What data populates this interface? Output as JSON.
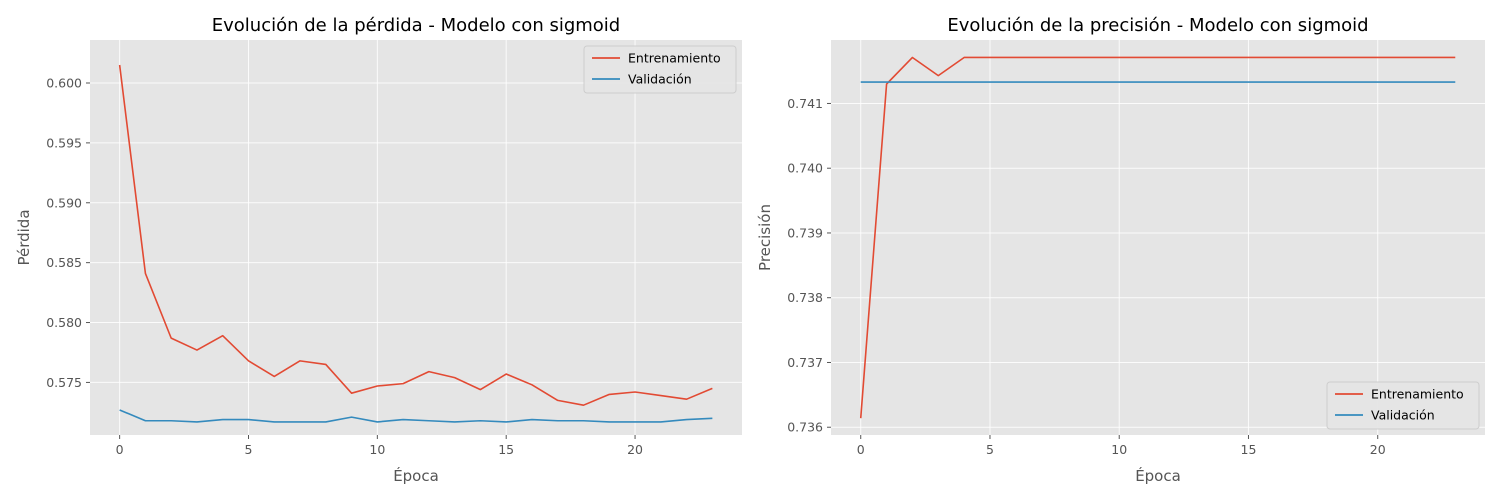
{
  "chart_data": [
    {
      "type": "line",
      "title": "Evolución de la pérdida - Modelo con sigmoid",
      "xlabel": "Época",
      "ylabel": "Pérdida",
      "xlim": [
        -1.15,
        24.15
      ],
      "ylim": [
        0.57061,
        0.60359
      ],
      "xticks": [
        0,
        5,
        10,
        15,
        20
      ],
      "yticks": [
        0.575,
        0.58,
        0.585,
        0.59,
        0.595,
        0.6
      ],
      "ytick_labels": [
        "0.575",
        "0.580",
        "0.585",
        "0.590",
        "0.595",
        "0.600"
      ],
      "grid": true,
      "legend": "upper right",
      "x": [
        0,
        1,
        2,
        3,
        4,
        5,
        6,
        7,
        8,
        9,
        10,
        11,
        12,
        13,
        14,
        15,
        16,
        17,
        18,
        19,
        20,
        21,
        22,
        23
      ],
      "series": [
        {
          "name": "Entrenamiento",
          "color": "#e24a33",
          "values": [
            0.6015,
            0.5841,
            0.5787,
            0.5777,
            0.5789,
            0.5768,
            0.5755,
            0.5768,
            0.5765,
            0.5741,
            0.5747,
            0.5749,
            0.5759,
            0.5754,
            0.5744,
            0.5757,
            0.5748,
            0.5735,
            0.5731,
            0.574,
            0.5742,
            0.5739,
            0.5736,
            0.5745
          ]
        },
        {
          "name": "Validación",
          "color": "#348abd",
          "values": [
            0.5727,
            0.5718,
            0.5718,
            0.5717,
            0.5719,
            0.5719,
            0.5717,
            0.5717,
            0.5717,
            0.5721,
            0.5717,
            0.5719,
            0.5718,
            0.5717,
            0.5718,
            0.5717,
            0.5719,
            0.5718,
            0.5718,
            0.5717,
            0.5717,
            0.5717,
            0.5719,
            0.572
          ]
        }
      ]
    },
    {
      "type": "line",
      "title": "Evolución de la precisión - Modelo con sigmoid",
      "xlabel": "Época",
      "ylabel": "Precisión",
      "xlim": [
        -1.15,
        24.15
      ],
      "ylim": [
        0.73588,
        0.74198
      ],
      "xticks": [
        0,
        5,
        10,
        15,
        20
      ],
      "yticks": [
        0.736,
        0.737,
        0.738,
        0.739,
        0.74,
        0.741
      ],
      "ytick_labels": [
        "0.736",
        "0.737",
        "0.738",
        "0.739",
        "0.740",
        "0.741"
      ],
      "grid": true,
      "legend": "lower right",
      "x": [
        0,
        1,
        2,
        3,
        4,
        5,
        6,
        7,
        8,
        9,
        10,
        11,
        12,
        13,
        14,
        15,
        16,
        17,
        18,
        19,
        20,
        21,
        22,
        23
      ],
      "series": [
        {
          "name": "Entrenamiento",
          "color": "#e24a33",
          "values": [
            0.73614,
            0.7413,
            0.74171,
            0.74143,
            0.74171,
            0.74171,
            0.74171,
            0.74171,
            0.74171,
            0.74171,
            0.74171,
            0.74171,
            0.74171,
            0.74171,
            0.74171,
            0.74171,
            0.74171,
            0.74171,
            0.74171,
            0.74171,
            0.74171,
            0.74171,
            0.74171,
            0.74171
          ]
        },
        {
          "name": "Validación",
          "color": "#348abd",
          "values": [
            0.74133,
            0.74133,
            0.74133,
            0.74133,
            0.74133,
            0.74133,
            0.74133,
            0.74133,
            0.74133,
            0.74133,
            0.74133,
            0.74133,
            0.74133,
            0.74133,
            0.74133,
            0.74133,
            0.74133,
            0.74133,
            0.74133,
            0.74133,
            0.74133,
            0.74133,
            0.74133,
            0.74133
          ]
        }
      ]
    }
  ]
}
